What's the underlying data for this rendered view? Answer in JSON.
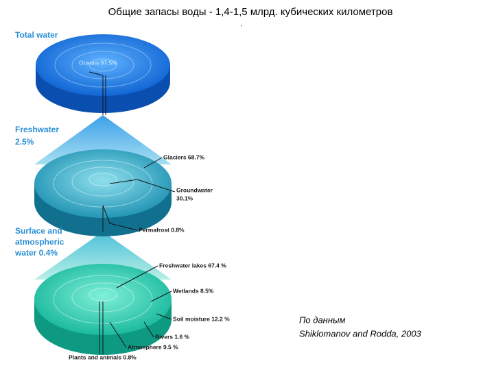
{
  "title": "Общие запасы воды - 1,4-1,5 млрд. кубических километров",
  "mark": "-",
  "levels": [
    {
      "label": [
        "Total water"
      ],
      "items": [
        "Oceans 97.5%"
      ]
    },
    {
      "label": [
        "Freshwater",
        "2.5%"
      ],
      "items": [
        [
          "Glaciers 68.7%"
        ],
        [
          "Groundwater",
          "30.1%"
        ],
        [
          "Permafrost 0.8%"
        ]
      ]
    },
    {
      "label": [
        "Surface and",
        "atmospheric",
        "water 0.4%"
      ],
      "items": [
        [
          "Freshwater lakes 67.4 %"
        ],
        [
          "Wetlands 8.5%"
        ],
        [
          "Soil moisture 12.2 %"
        ],
        [
          "Rivers 1.6 %"
        ],
        [
          "Atmosphere 9.5 %"
        ],
        [
          "Plants and animals 0.8%"
        ]
      ]
    }
  ],
  "source": [
    "По данным",
    "Shiklomanov and Rodda, 2003"
  ]
}
